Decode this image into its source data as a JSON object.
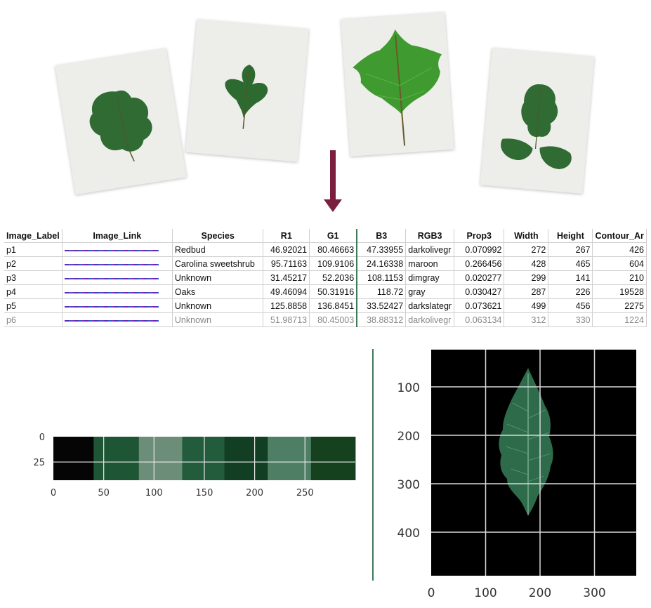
{
  "table": {
    "headers": [
      "Image_Label",
      "Image_Link",
      "Species",
      "R1",
      "G1",
      "B3",
      "RGB3",
      "Prop3",
      "Width",
      "Height",
      "Contour_Ar"
    ],
    "rows": [
      [
        "p1",
        "",
        "Redbud",
        "46.92021",
        "80.46663",
        "47.33955",
        "darkolivegr",
        "0.070992",
        "272",
        "267",
        "426"
      ],
      [
        "p2",
        "",
        "Carolina sweetshrub",
        "95.71163",
        "109.9106",
        "24.16338",
        "maroon",
        "0.266456",
        "428",
        "465",
        "604"
      ],
      [
        "p3",
        "",
        "Unknown",
        "31.45217",
        "52.2036",
        "108.1153",
        "dimgray",
        "0.020277",
        "299",
        "141",
        "210"
      ],
      [
        "p4",
        "",
        "Oaks",
        "49.46094",
        "50.31916",
        "118.72",
        "gray",
        "0.030427",
        "287",
        "226",
        "19528"
      ],
      [
        "p5",
        "",
        "Unknown",
        "125.8858",
        "136.8451",
        "33.52427",
        "darkslategr",
        "0.073621",
        "499",
        "456",
        "2275"
      ],
      [
        "p6",
        "",
        "Unknown",
        "51.98713",
        "80.45003",
        "38.88312",
        "darkolivegr",
        "0.063134",
        "312",
        "330",
        "1224"
      ]
    ]
  },
  "colors": {
    "arrow": "#7a1f3d",
    "leaf_dark": "#2f6b32",
    "leaf_bright": "#3f9a2f",
    "divider": "#3d7a58"
  },
  "palette_chart": {
    "x_ticks": [
      "0",
      "50",
      "100",
      "150",
      "200",
      "250"
    ],
    "y_ticks": [
      "0",
      "25"
    ],
    "segments": [
      {
        "start": 0,
        "end": 40,
        "color": "#050505"
      },
      {
        "start": 40,
        "end": 85,
        "color": "#1e5535"
      },
      {
        "start": 85,
        "end": 128,
        "color": "#6c8d78"
      },
      {
        "start": 128,
        "end": 170,
        "color": "#225c3c"
      },
      {
        "start": 170,
        "end": 213,
        "color": "#123f24"
      },
      {
        "start": 213,
        "end": 256,
        "color": "#4e7e64"
      },
      {
        "start": 256,
        "end": 300,
        "color": "#15411f"
      }
    ]
  },
  "leaf_plot": {
    "x_ticks": [
      "0",
      "100",
      "200",
      "300"
    ],
    "y_ticks": [
      "100",
      "200",
      "300",
      "400"
    ]
  }
}
